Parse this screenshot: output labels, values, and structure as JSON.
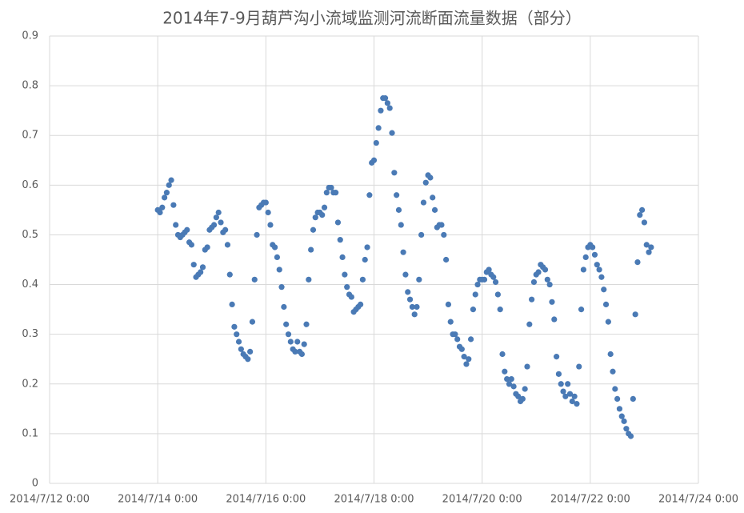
{
  "chart_data": {
    "type": "scatter",
    "title": "2014年7-9月葫芦沟小流域监测河流断面流量数据（部分）",
    "color": "#4a7ab5",
    "grid": true,
    "xlim": [
      "2014/7/12 0:00",
      "2014/7/24 0:00"
    ],
    "xticks": [
      "2014/7/12 0:00",
      "2014/7/14 0:00",
      "2014/7/16 0:00",
      "2014/7/18 0:00",
      "2014/7/20 0:00",
      "2014/7/22 0:00",
      "2014/7/24 0:00"
    ],
    "ylim": [
      0,
      0.9
    ],
    "yticks": [
      0,
      0.1,
      0.2,
      0.3,
      0.4,
      0.5,
      0.6,
      0.7,
      0.8,
      0.9
    ],
    "x": [
      "2014/7/14 0:00",
      "2014/7/14 1:00",
      "2014/7/14 2:00",
      "2014/7/14 3:00",
      "2014/7/14 4:00",
      "2014/7/14 5:00",
      "2014/7/14 6:00",
      "2014/7/14 7:00",
      "2014/7/14 8:00",
      "2014/7/14 9:00",
      "2014/7/14 10:00",
      "2014/7/14 11:00",
      "2014/7/14 12:00",
      "2014/7/14 13:00",
      "2014/7/14 14:00",
      "2014/7/14 15:00",
      "2014/7/14 16:00",
      "2014/7/14 17:00",
      "2014/7/14 18:00",
      "2014/7/14 19:00",
      "2014/7/14 20:00",
      "2014/7/14 21:00",
      "2014/7/14 22:00",
      "2014/7/14 23:00",
      "2014/7/15 0:00",
      "2014/7/15 1:00",
      "2014/7/15 2:00",
      "2014/7/15 3:00",
      "2014/7/15 4:00",
      "2014/7/15 5:00",
      "2014/7/15 6:00",
      "2014/7/15 7:00",
      "2014/7/15 8:00",
      "2014/7/15 9:00",
      "2014/7/15 10:00",
      "2014/7/15 11:00",
      "2014/7/15 12:00",
      "2014/7/15 13:00",
      "2014/7/15 14:00",
      "2014/7/15 15:00",
      "2014/7/15 16:00",
      "2014/7/15 17:00",
      "2014/7/15 18:00",
      "2014/7/15 19:00",
      "2014/7/15 20:00",
      "2014/7/15 21:00",
      "2014/7/15 22:00",
      "2014/7/15 23:00",
      "2014/7/16 0:00",
      "2014/7/16 1:00",
      "2014/7/16 2:00",
      "2014/7/16 3:00",
      "2014/7/16 4:00",
      "2014/7/16 5:00",
      "2014/7/16 6:00",
      "2014/7/16 7:00",
      "2014/7/16 8:00",
      "2014/7/16 9:00",
      "2014/7/16 10:00",
      "2014/7/16 11:00",
      "2014/7/16 12:00",
      "2014/7/16 13:00",
      "2014/7/16 14:00",
      "2014/7/16 15:00",
      "2014/7/16 16:00",
      "2014/7/16 17:00",
      "2014/7/16 18:00",
      "2014/7/16 19:00",
      "2014/7/16 20:00",
      "2014/7/16 21:00",
      "2014/7/16 22:00",
      "2014/7/16 23:00",
      "2014/7/17 0:00",
      "2014/7/17 1:00",
      "2014/7/17 2:00",
      "2014/7/17 3:00",
      "2014/7/17 4:00",
      "2014/7/17 5:00",
      "2014/7/17 6:00",
      "2014/7/17 7:00",
      "2014/7/17 8:00",
      "2014/7/17 9:00",
      "2014/7/17 10:00",
      "2014/7/17 11:00",
      "2014/7/17 12:00",
      "2014/7/17 13:00",
      "2014/7/17 14:00",
      "2014/7/17 15:00",
      "2014/7/17 16:00",
      "2014/7/17 17:00",
      "2014/7/17 18:00",
      "2014/7/17 19:00",
      "2014/7/17 20:00",
      "2014/7/17 21:00",
      "2014/7/17 22:00",
      "2014/7/17 23:00",
      "2014/7/18 0:00",
      "2014/7/18 1:00",
      "2014/7/18 2:00",
      "2014/7/18 3:00",
      "2014/7/18 4:00",
      "2014/7/18 5:00",
      "2014/7/18 6:00",
      "2014/7/18 7:00",
      "2014/7/18 8:00",
      "2014/7/18 9:00",
      "2014/7/18 10:00",
      "2014/7/18 11:00",
      "2014/7/18 12:00",
      "2014/7/18 13:00",
      "2014/7/18 14:00",
      "2014/7/18 15:00",
      "2014/7/18 16:00",
      "2014/7/18 17:00",
      "2014/7/18 18:00",
      "2014/7/18 19:00",
      "2014/7/18 20:00",
      "2014/7/18 21:00",
      "2014/7/18 22:00",
      "2014/7/18 23:00",
      "2014/7/19 0:00",
      "2014/7/19 1:00",
      "2014/7/19 2:00",
      "2014/7/19 3:00",
      "2014/7/19 4:00",
      "2014/7/19 5:00",
      "2014/7/19 6:00",
      "2014/7/19 7:00",
      "2014/7/19 8:00",
      "2014/7/19 9:00",
      "2014/7/19 10:00",
      "2014/7/19 11:00",
      "2014/7/19 12:00",
      "2014/7/19 13:00",
      "2014/7/19 14:00",
      "2014/7/19 15:00",
      "2014/7/19 16:00",
      "2014/7/19 17:00",
      "2014/7/19 18:00",
      "2014/7/19 19:00",
      "2014/7/19 20:00",
      "2014/7/19 21:00",
      "2014/7/19 22:00",
      "2014/7/19 23:00",
      "2014/7/20 0:00",
      "2014/7/20 1:00",
      "2014/7/20 2:00",
      "2014/7/20 3:00",
      "2014/7/20 4:00",
      "2014/7/20 5:00",
      "2014/7/20 6:00",
      "2014/7/20 7:00",
      "2014/7/20 8:00",
      "2014/7/20 9:00",
      "2014/7/20 10:00",
      "2014/7/20 11:00",
      "2014/7/20 12:00",
      "2014/7/20 13:00",
      "2014/7/20 14:00",
      "2014/7/20 15:00",
      "2014/7/20 16:00",
      "2014/7/20 17:00",
      "2014/7/20 18:00",
      "2014/7/20 19:00",
      "2014/7/20 20:00",
      "2014/7/20 21:00",
      "2014/7/20 22:00",
      "2014/7/20 23:00",
      "2014/7/21 0:00",
      "2014/7/21 1:00",
      "2014/7/21 2:00",
      "2014/7/21 3:00",
      "2014/7/21 4:00",
      "2014/7/21 5:00",
      "2014/7/21 6:00",
      "2014/7/21 7:00",
      "2014/7/21 8:00",
      "2014/7/21 9:00",
      "2014/7/21 10:00",
      "2014/7/21 11:00",
      "2014/7/21 12:00",
      "2014/7/21 13:00",
      "2014/7/21 14:00",
      "2014/7/21 15:00",
      "2014/7/21 16:00",
      "2014/7/21 17:00",
      "2014/7/21 18:00",
      "2014/7/21 19:00",
      "2014/7/21 20:00",
      "2014/7/21 21:00",
      "2014/7/21 22:00",
      "2014/7/21 23:00",
      "2014/7/22 0:00",
      "2014/7/22 1:00",
      "2014/7/22 2:00",
      "2014/7/22 3:00",
      "2014/7/22 4:00",
      "2014/7/22 5:00",
      "2014/7/22 6:00",
      "2014/7/22 7:00",
      "2014/7/22 8:00",
      "2014/7/22 9:00",
      "2014/7/22 10:00",
      "2014/7/22 11:00",
      "2014/7/22 12:00",
      "2014/7/22 13:00",
      "2014/7/22 14:00",
      "2014/7/22 15:00",
      "2014/7/22 16:00",
      "2014/7/22 17:00",
      "2014/7/22 18:00",
      "2014/7/22 19:00",
      "2014/7/22 20:00",
      "2014/7/22 21:00",
      "2014/7/22 22:00",
      "2014/7/22 23:00",
      "2014/7/23 0:00",
      "2014/7/23 1:00",
      "2014/7/23 2:00",
      "2014/7/23 3:00"
    ],
    "values": [
      0.55,
      0.545,
      0.555,
      0.575,
      0.585,
      0.6,
      0.61,
      0.56,
      0.52,
      0.5,
      0.495,
      0.5,
      0.505,
      0.51,
      0.485,
      0.48,
      0.44,
      0.415,
      0.42,
      0.425,
      0.435,
      0.47,
      0.475,
      0.51,
      0.515,
      0.52,
      0.535,
      0.545,
      0.525,
      0.505,
      0.51,
      0.48,
      0.42,
      0.36,
      0.315,
      0.3,
      0.285,
      0.27,
      0.26,
      0.255,
      0.25,
      0.265,
      0.325,
      0.41,
      0.5,
      0.555,
      0.56,
      0.565,
      0.565,
      0.545,
      0.52,
      0.48,
      0.475,
      0.455,
      0.43,
      0.395,
      0.355,
      0.32,
      0.3,
      0.285,
      0.27,
      0.265,
      0.285,
      0.265,
      0.26,
      0.28,
      0.32,
      0.41,
      0.47,
      0.51,
      0.535,
      0.545,
      0.545,
      0.54,
      0.555,
      0.585,
      0.595,
      0.595,
      0.585,
      0.585,
      0.525,
      0.49,
      0.455,
      0.42,
      0.395,
      0.38,
      0.375,
      0.345,
      0.35,
      0.355,
      0.36,
      0.41,
      0.45,
      0.475,
      0.58,
      0.645,
      0.65,
      0.685,
      0.715,
      0.75,
      0.775,
      0.775,
      0.765,
      0.755,
      0.705,
      0.625,
      0.58,
      0.55,
      0.52,
      0.465,
      0.42,
      0.385,
      0.37,
      0.355,
      0.34,
      0.355,
      0.41,
      0.5,
      0.565,
      0.605,
      0.62,
      0.615,
      0.575,
      0.55,
      0.515,
      0.52,
      0.52,
      0.5,
      0.45,
      0.36,
      0.325,
      0.3,
      0.3,
      0.29,
      0.275,
      0.27,
      0.255,
      0.24,
      0.25,
      0.29,
      0.35,
      0.38,
      0.4,
      0.41,
      0.41,
      0.41,
      0.425,
      0.43,
      0.42,
      0.415,
      0.405,
      0.38,
      0.35,
      0.26,
      0.225,
      0.21,
      0.2,
      0.21,
      0.195,
      0.18,
      0.175,
      0.165,
      0.17,
      0.19,
      0.235,
      0.32,
      0.37,
      0.405,
      0.42,
      0.425,
      0.44,
      0.435,
      0.43,
      0.41,
      0.4,
      0.365,
      0.33,
      0.255,
      0.22,
      0.2,
      0.185,
      0.175,
      0.2,
      0.18,
      0.165,
      0.175,
      0.16,
      0.235,
      0.35,
      0.43,
      0.455,
      0.475,
      0.48,
      0.475,
      0.46,
      0.44,
      0.43,
      0.415,
      0.39,
      0.36,
      0.325,
      0.26,
      0.225,
      0.19,
      0.17,
      0.15,
      0.135,
      0.125,
      0.11,
      0.1,
      0.095,
      0.17,
      0.34,
      0.445,
      0.54,
      0.55,
      0.525,
      0.48,
      0.465,
      0.475
    ]
  }
}
